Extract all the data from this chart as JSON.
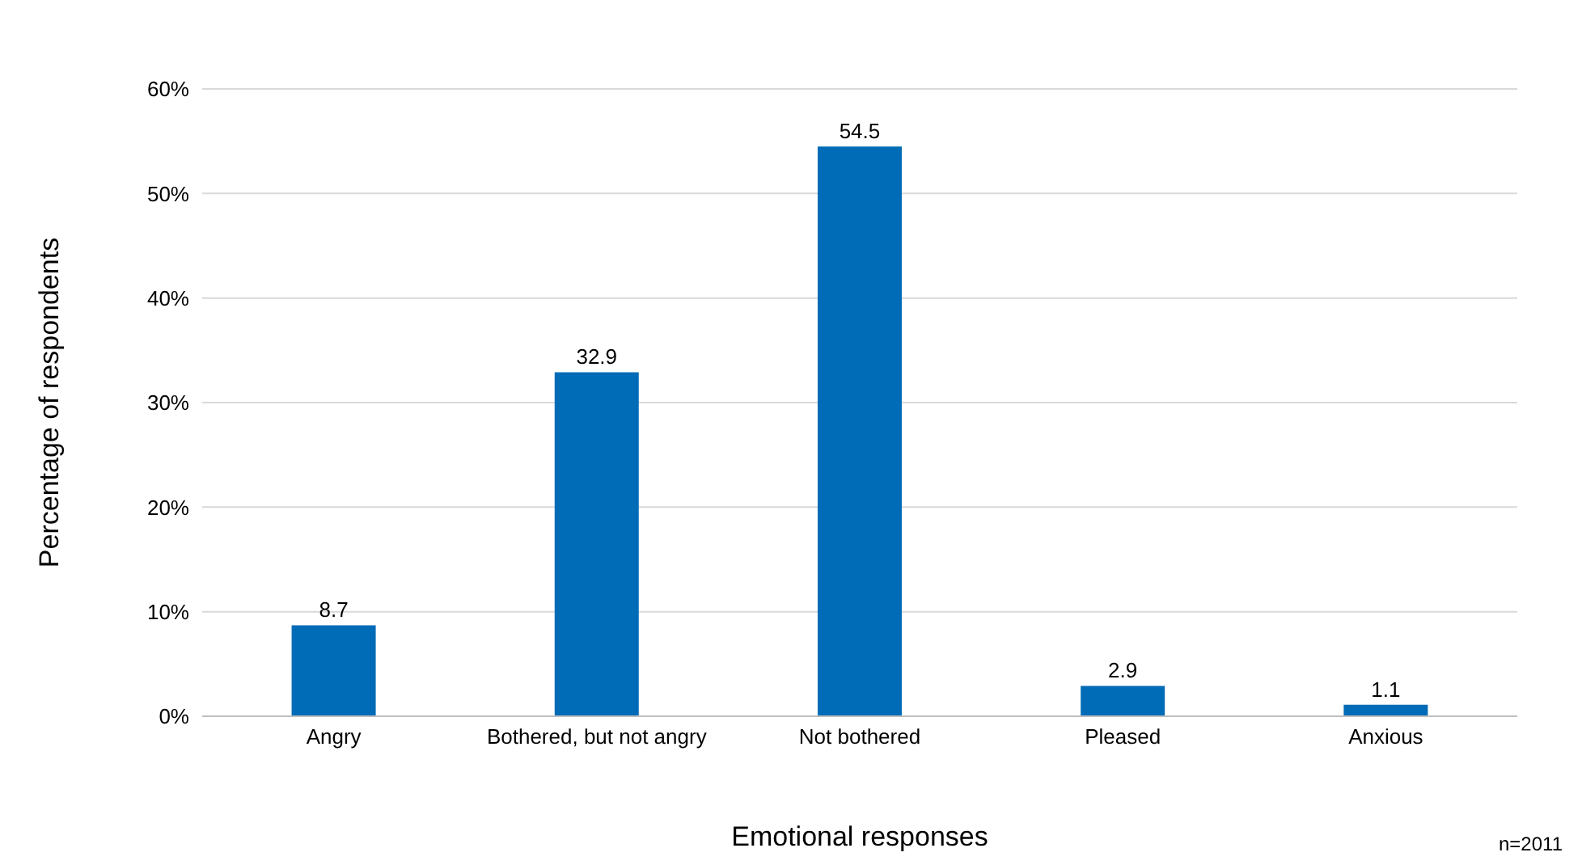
{
  "chart_data": {
    "type": "bar",
    "xlabel": "Emotional responses",
    "ylabel": "Percentage of respondents",
    "categories": [
      "Angry",
      "Bothered, but not angry",
      "Not bothered",
      "Pleased",
      "Anxious"
    ],
    "values": [
      8.7,
      32.9,
      54.5,
      2.9,
      1.1
    ],
    "color": "#006bb6",
    "ylim": [
      0,
      60
    ],
    "yticks": [
      {
        "value": 0,
        "label": "0%"
      },
      {
        "value": 10,
        "label": "10%"
      },
      {
        "value": 20,
        "label": "20%"
      },
      {
        "value": 30,
        "label": "30%"
      },
      {
        "value": 40,
        "label": "40%"
      },
      {
        "value": 50,
        "label": "50%"
      },
      {
        "value": 60,
        "label": "60%"
      }
    ],
    "grid": "y",
    "data_labels": true,
    "annotations": [
      "n=2011"
    ]
  }
}
